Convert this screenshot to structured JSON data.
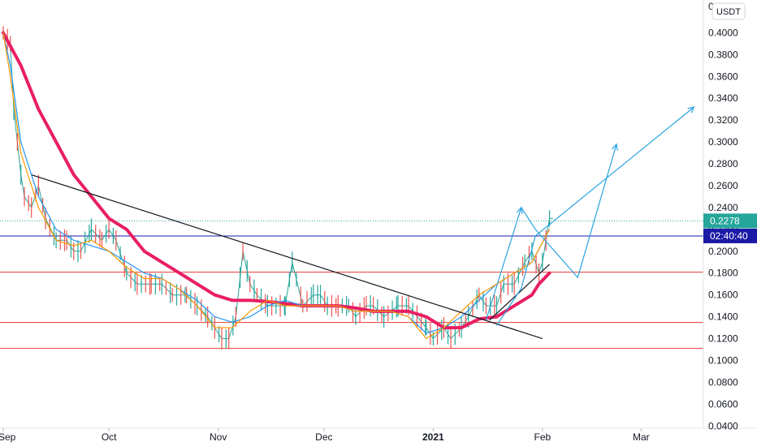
{
  "chart_data": {
    "type": "line",
    "title": "",
    "xlabel": "",
    "ylabel": "",
    "y_unit": "USDT",
    "ylim": [
      0.038,
      0.43
    ],
    "y_ticks": [
      "0.0400",
      "0.0600",
      "0.0800",
      "0.1000",
      "0.1200",
      "0.1400",
      "0.1600",
      "0.1800",
      "0.2000",
      "0.2200",
      "0.2400",
      "0.2600",
      "0.2800",
      "0.3000",
      "0.3200",
      "0.3400",
      "0.3600",
      "0.3800",
      "0.4000"
    ],
    "x_ticks": [
      {
        "label": "Sep",
        "day": 0,
        "bold": false
      },
      {
        "label": "Oct",
        "day": 30,
        "bold": false
      },
      {
        "label": "Nov",
        "day": 61,
        "bold": false
      },
      {
        "label": "Dec",
        "day": 91,
        "bold": false
      },
      {
        "label": "2021",
        "day": 122,
        "bold": true
      },
      {
        "label": "Feb",
        "day": 153,
        "bold": false
      },
      {
        "label": "Mar",
        "day": 181,
        "bold": false
      }
    ],
    "last_price": "0.2278",
    "last_price_value": 0.2278,
    "countdown": "02:40:40",
    "grid": false,
    "price_series": {
      "x": [
        0,
        2,
        3,
        4,
        5,
        6,
        8,
        10,
        12,
        15,
        18,
        20,
        22,
        25,
        28,
        30,
        32,
        35,
        38,
        42,
        45,
        48,
        52,
        55,
        58,
        60,
        62,
        64,
        66,
        68,
        70,
        72,
        75,
        80,
        82,
        85,
        88,
        90,
        92,
        95,
        98,
        100,
        103,
        105,
        108,
        112,
        115,
        120,
        122,
        125,
        127,
        130,
        132,
        135,
        137,
        140,
        142,
        145,
        148,
        150,
        152,
        153,
        154,
        155,
        156
      ],
      "values": [
        0.4,
        0.39,
        0.33,
        0.3,
        0.27,
        0.25,
        0.24,
        0.26,
        0.23,
        0.21,
        0.21,
        0.2,
        0.2,
        0.22,
        0.21,
        0.22,
        0.21,
        0.18,
        0.17,
        0.17,
        0.17,
        0.16,
        0.16,
        0.15,
        0.14,
        0.13,
        0.12,
        0.12,
        0.14,
        0.2,
        0.17,
        0.16,
        0.15,
        0.15,
        0.19,
        0.15,
        0.16,
        0.16,
        0.15,
        0.15,
        0.15,
        0.14,
        0.15,
        0.15,
        0.14,
        0.15,
        0.15,
        0.13,
        0.12,
        0.13,
        0.12,
        0.13,
        0.14,
        0.16,
        0.15,
        0.15,
        0.17,
        0.17,
        0.19,
        0.2,
        0.18,
        0.19,
        0.21,
        0.23,
        0.23
      ]
    },
    "series": [
      {
        "color": "#e91e63",
        "x": [
          0,
          5,
          10,
          15,
          20,
          25,
          30,
          35,
          40,
          45,
          50,
          55,
          60,
          65,
          70,
          75,
          80,
          85,
          90,
          95,
          100,
          105,
          110,
          115,
          120,
          125,
          130,
          135,
          140,
          145,
          150,
          152,
          155
        ],
        "values": [
          0.4,
          0.37,
          0.33,
          0.3,
          0.27,
          0.25,
          0.23,
          0.22,
          0.2,
          0.19,
          0.18,
          0.17,
          0.16,
          0.155,
          0.155,
          0.154,
          0.152,
          0.15,
          0.15,
          0.15,
          0.148,
          0.145,
          0.145,
          0.145,
          0.14,
          0.13,
          0.13,
          0.138,
          0.14,
          0.15,
          0.16,
          0.17,
          0.18
        ]
      },
      {
        "color": "#2196f3",
        "x": [
          0,
          2,
          5,
          10,
          15,
          20,
          25,
          30,
          35,
          40,
          45,
          50,
          55,
          60,
          65,
          70,
          75,
          80,
          85,
          90,
          95,
          100,
          105,
          110,
          115,
          120,
          125,
          130,
          135,
          140,
          145,
          150,
          155
        ],
        "values": [
          0.4,
          0.37,
          0.3,
          0.25,
          0.22,
          0.21,
          0.205,
          0.2,
          0.19,
          0.18,
          0.175,
          0.165,
          0.155,
          0.14,
          0.135,
          0.14,
          0.15,
          0.155,
          0.15,
          0.15,
          0.15,
          0.145,
          0.145,
          0.145,
          0.14,
          0.125,
          0.13,
          0.14,
          0.155,
          0.17,
          0.18,
          0.19,
          0.22
        ]
      },
      {
        "color": "#ff9800",
        "x": [
          0,
          2,
          5,
          10,
          15,
          20,
          25,
          30,
          35,
          40,
          45,
          50,
          55,
          60,
          65,
          70,
          75,
          80,
          85,
          90,
          95,
          100,
          105,
          110,
          115,
          120,
          125,
          130,
          135,
          140,
          145,
          150,
          155
        ],
        "values": [
          0.4,
          0.36,
          0.29,
          0.24,
          0.21,
          0.205,
          0.21,
          0.2,
          0.185,
          0.175,
          0.175,
          0.165,
          0.15,
          0.13,
          0.13,
          0.145,
          0.155,
          0.15,
          0.15,
          0.15,
          0.15,
          0.145,
          0.145,
          0.145,
          0.14,
          0.12,
          0.13,
          0.145,
          0.16,
          0.17,
          0.18,
          0.19,
          0.22
        ]
      }
    ],
    "horizontal_levels": [
      {
        "value": 0.214,
        "color": "#1a1aa6"
      },
      {
        "value": 0.1808,
        "color": "#e53935"
      },
      {
        "value": 0.1348,
        "color": "#e53935"
      },
      {
        "value": 0.111,
        "color": "#e53935"
      }
    ],
    "last_price_line": {
      "value": 0.2278,
      "color": "#26a69a"
    },
    "trendlines": [
      {
        "color": "#131722",
        "points": [
          [
            8,
            0.27
          ],
          [
            153,
            0.12
          ]
        ]
      },
      {
        "color": "#131722",
        "points": [
          [
            138,
            0.137
          ],
          [
            155,
            0.188
          ]
        ]
      }
    ],
    "projection_paths": [
      {
        "color": "#29a3e0",
        "points": [
          [
            137,
            0.137
          ],
          [
            147,
            0.24
          ],
          [
            151,
            0.22
          ],
          [
            163,
            0.176
          ],
          [
            174,
            0.298
          ]
        ],
        "arrows": [
          1,
          4
        ]
      },
      {
        "color": "#29a3e0",
        "points": [
          [
            140,
            0.132
          ],
          [
            147,
            0.166
          ],
          [
            151,
            0.214
          ],
          [
            196,
            0.332
          ]
        ],
        "arrows": [
          3
        ]
      }
    ]
  }
}
